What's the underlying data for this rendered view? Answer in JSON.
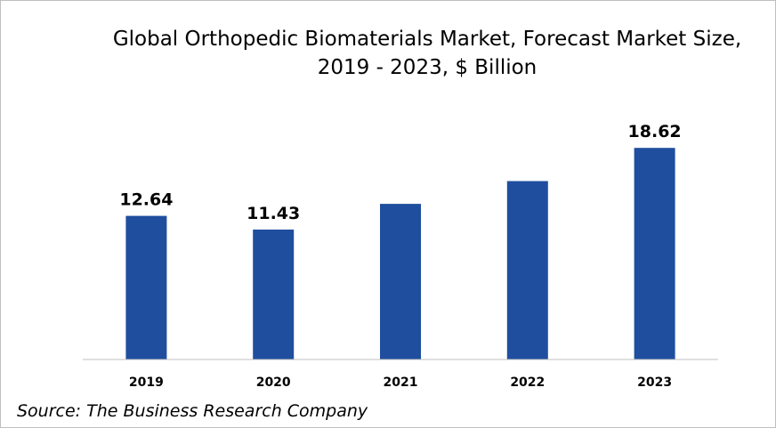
{
  "chart_data": {
    "type": "bar",
    "title": "Global Orthopedic Biomaterials Market, Forecast Market Size, 2019 - 2023, $ Billion",
    "categories": [
      "2019",
      "2020",
      "2021",
      "2022",
      "2023"
    ],
    "values": [
      12.64,
      11.43,
      13.7,
      15.7,
      18.62
    ],
    "data_labels": [
      "12.64",
      "11.43",
      "",
      "",
      "18.62"
    ],
    "xlabel": "",
    "ylabel": "",
    "ylim": [
      0,
      19.5
    ],
    "grid": false,
    "legend": "none",
    "bar_color": "#1f4e9e"
  },
  "source": "Source: The Business Research Company"
}
